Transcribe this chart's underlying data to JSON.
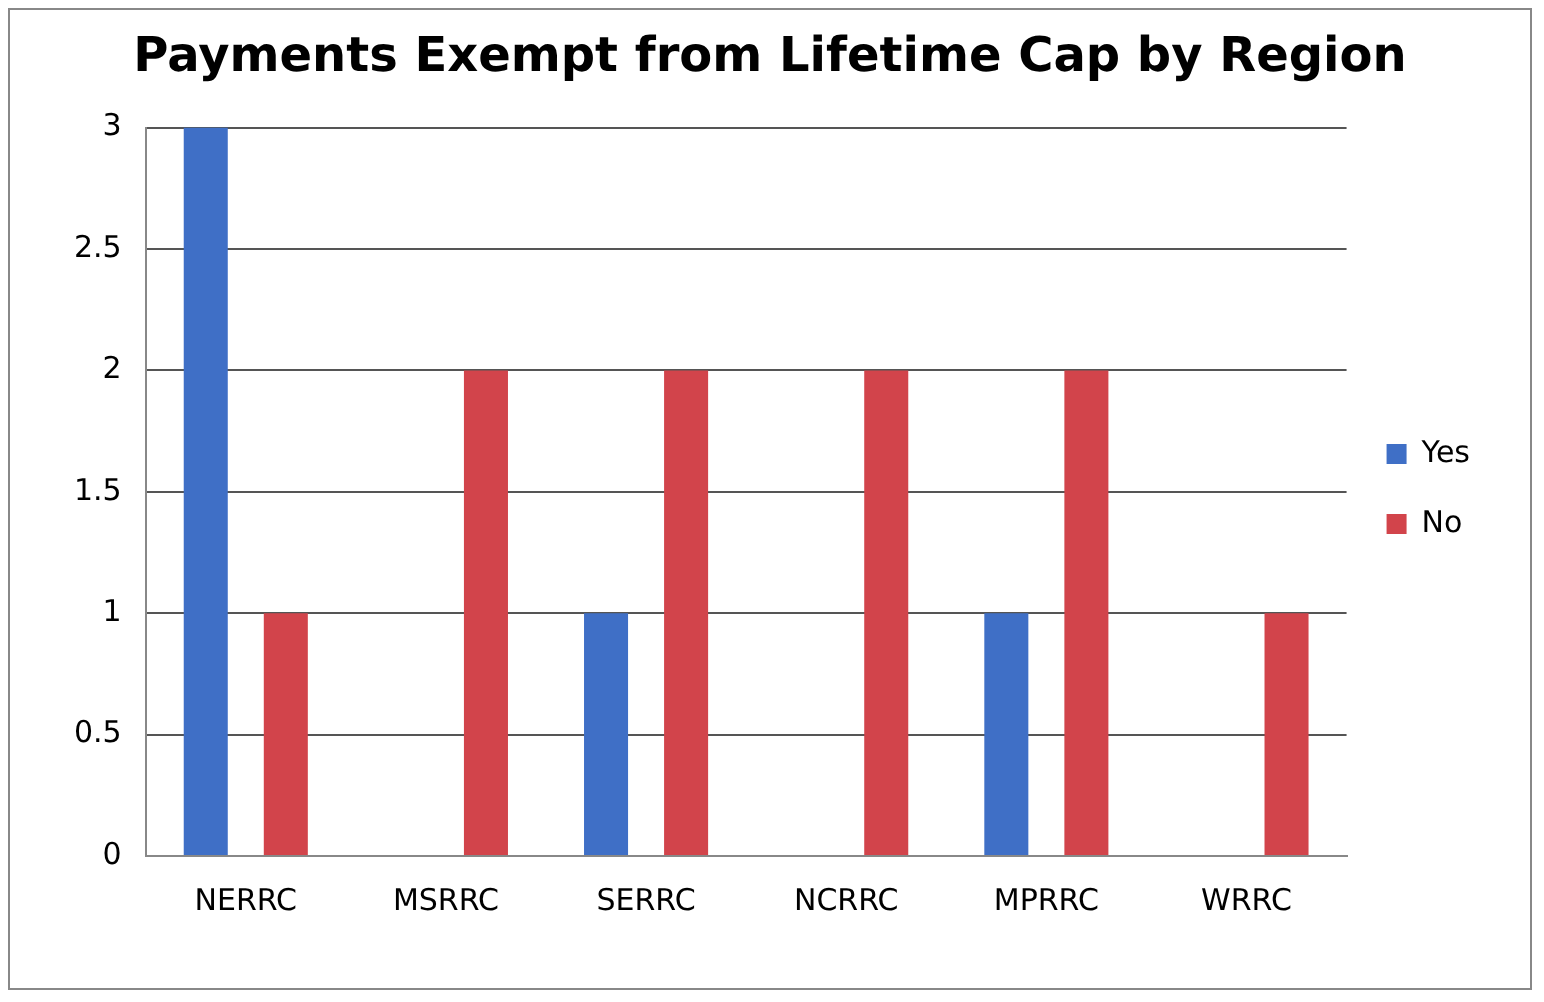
{
  "chart_data": {
    "type": "bar",
    "title": "Payments Exempt from Lifetime Cap by Region",
    "categories": [
      "NERRC",
      "MSRRC",
      "SERRC",
      "NCRRC",
      "MPRRC",
      "WRRC"
    ],
    "series": [
      {
        "name": "Yes",
        "color": "#3f6fc6",
        "values": [
          3,
          0,
          1,
          0,
          1,
          0
        ]
      },
      {
        "name": "No",
        "color": "#d2444b",
        "values": [
          1,
          2,
          2,
          2,
          2,
          1
        ]
      }
    ],
    "ylim": [
      0,
      3
    ],
    "yticks": [
      0,
      0.5,
      1,
      1.5,
      2,
      2.5,
      3
    ],
    "grid": "y",
    "legend": "right"
  }
}
